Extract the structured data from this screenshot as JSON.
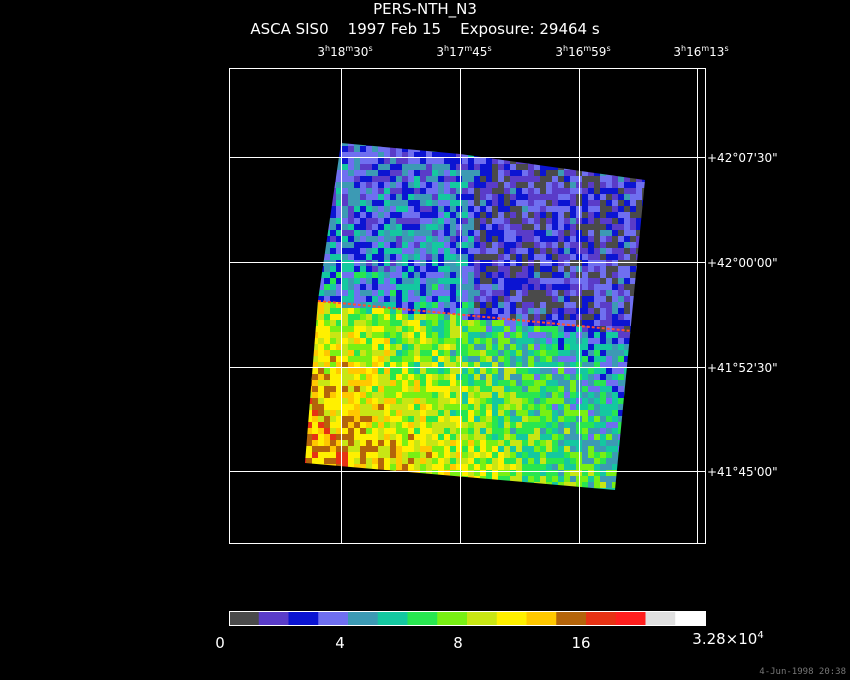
{
  "title": {
    "object": "PERS-NTH_N3",
    "subtitle": "ASCA SIS0    1997 Feb 15    Exposure: 29464 s"
  },
  "ra_ticks": [
    {
      "h": "3",
      "m": "18",
      "s": "30"
    },
    {
      "h": "3",
      "m": "17",
      "s": "45"
    },
    {
      "h": "3",
      "m": "16",
      "s": "59"
    },
    {
      "h": "3",
      "m": "16",
      "s": "13"
    }
  ],
  "dec_ticks": [
    "+42°07'30\"",
    "+42°00'00\"",
    "+41°52'30\"",
    "+41°45'00\""
  ],
  "colorbar": {
    "colors": [
      "#4a4a4a",
      "#5a3cc8",
      "#0b14d2",
      "#6f6ff0",
      "#3c9ab4",
      "#14c8a0",
      "#28e650",
      "#78f014",
      "#c8e614",
      "#fff000",
      "#ffc800",
      "#b4640a",
      "#e63214",
      "#ff1e1e",
      "#e0e0e0",
      "#ffffff"
    ],
    "labels": [
      "0",
      "4",
      "8",
      "16"
    ],
    "max_label": {
      "base": "3.28×10",
      "exp": "4"
    }
  },
  "footer": "4-Jun-1998 20:38"
}
